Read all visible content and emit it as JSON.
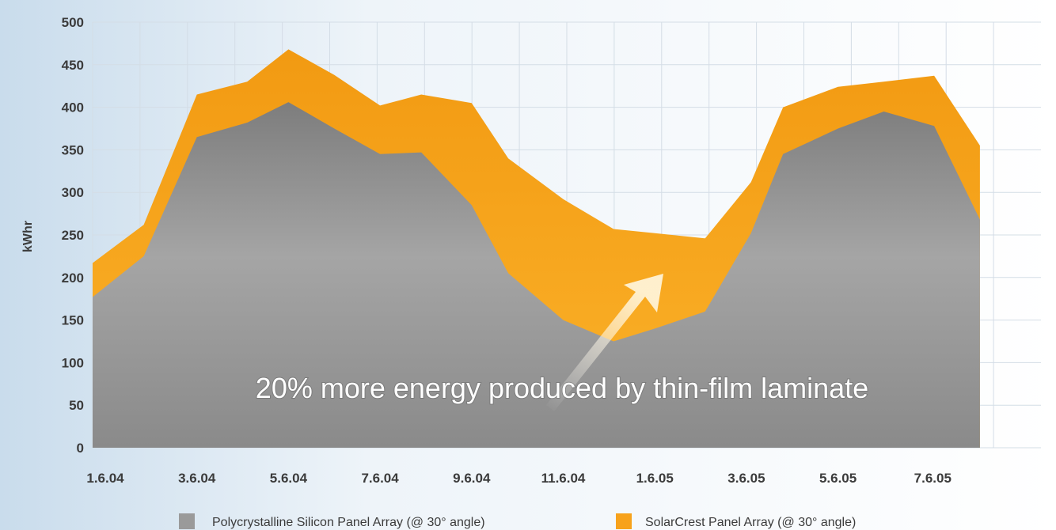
{
  "chart_data": {
    "type": "area",
    "title": "",
    "xlabel": "",
    "ylabel": "kWhr",
    "ylim": [
      0,
      500
    ],
    "yticks": [
      0,
      50,
      100,
      150,
      200,
      250,
      300,
      350,
      400,
      450,
      500
    ],
    "xtick_labels": [
      "1.6.04",
      "3.6.04",
      "5.6.04",
      "7.6.04",
      "9.6.04",
      "11.6.04",
      "1.6.05",
      "3.6.05",
      "5.6.05",
      "7.6.05"
    ],
    "grid": true,
    "legend_position": "bottom",
    "annotation": "20% more energy produced by thin-film laminate",
    "series": [
      {
        "name": "SolarCrest Panel Array (@ 30° angle)",
        "color": "#f7a21b",
        "points": [
          [
            0,
            217
          ],
          [
            0.42,
            262
          ],
          [
            1.0,
            415
          ],
          [
            1.55,
            430
          ],
          [
            2.0,
            468
          ],
          [
            2.5,
            438
          ],
          [
            3.0,
            402
          ],
          [
            3.45,
            415
          ],
          [
            4.0,
            405
          ],
          [
            4.4,
            340
          ],
          [
            5.0,
            292
          ],
          [
            5.55,
            257
          ],
          [
            6.0,
            252
          ],
          [
            6.55,
            246
          ],
          [
            7.05,
            312
          ],
          [
            7.4,
            400
          ],
          [
            8.0,
            424
          ],
          [
            8.5,
            430
          ],
          [
            9.05,
            437
          ],
          [
            9.55,
            355
          ]
        ]
      },
      {
        "name": "Polycrystalline Silicon Panel Array (@ 30° angle)",
        "color": "#9a9a9a",
        "points": [
          [
            0,
            177
          ],
          [
            0.42,
            225
          ],
          [
            1.0,
            365
          ],
          [
            1.55,
            382
          ],
          [
            2.0,
            406
          ],
          [
            2.5,
            375
          ],
          [
            3.0,
            345
          ],
          [
            3.45,
            347
          ],
          [
            4.0,
            285
          ],
          [
            4.4,
            205
          ],
          [
            5.0,
            150
          ],
          [
            5.55,
            125
          ],
          [
            6.0,
            140
          ],
          [
            6.55,
            160
          ],
          [
            7.05,
            252
          ],
          [
            7.4,
            345
          ],
          [
            8.0,
            375
          ],
          [
            8.5,
            395
          ],
          [
            9.05,
            378
          ],
          [
            9.55,
            268
          ]
        ]
      }
    ]
  }
}
